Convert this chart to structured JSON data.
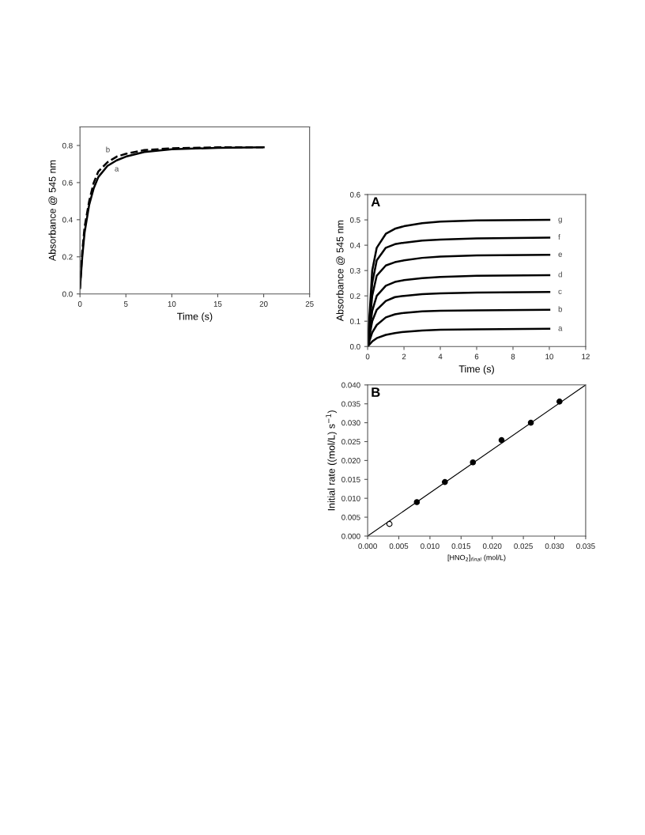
{
  "chart_data": [
    {
      "type": "line",
      "ylabel": "Absorbance @ 545 nm",
      "xlabel": "Time (s)",
      "xlim": [
        0,
        25
      ],
      "xticks": [
        0,
        5,
        10,
        15,
        20,
        25
      ],
      "ylim": [
        0,
        0.9
      ],
      "yticks": [
        {
          "value": 0,
          "label": "0.0"
        },
        {
          "value": 0.2,
          "label": "0.2"
        },
        {
          "value": 0.4,
          "label": "0.4"
        },
        {
          "value": 0.6,
          "label": "0.6"
        },
        {
          "value": 0.8,
          "label": "0.8"
        }
      ],
      "grid": false,
      "legend": false,
      "series": [
        {
          "name": "a",
          "color": "#000000",
          "line_style": "solid",
          "x": [
            0,
            0.25,
            0.5,
            1,
            1.5,
            2,
            3,
            4,
            5,
            7,
            10,
            15,
            20
          ],
          "values": [
            0.03,
            0.2,
            0.33,
            0.48,
            0.57,
            0.63,
            0.69,
            0.72,
            0.74,
            0.765,
            0.78,
            0.787,
            0.79
          ]
        },
        {
          "name": "b",
          "color": "#000000",
          "line_style": "dashed",
          "x": [
            0,
            0.25,
            0.5,
            1,
            1.5,
            2,
            3,
            4,
            5,
            7,
            10,
            15,
            20
          ],
          "values": [
            0.03,
            0.23,
            0.36,
            0.5,
            0.6,
            0.66,
            0.71,
            0.74,
            0.755,
            0.775,
            0.785,
            0.79,
            0.79
          ]
        }
      ]
    },
    {
      "type": "line",
      "title": "A",
      "ylabel": "Absorbance @ 545 nm",
      "xlabel": "Time (s)",
      "xlim": [
        0,
        12
      ],
      "xticks": [
        0,
        2,
        4,
        6,
        8,
        10,
        12
      ],
      "ylim": [
        0,
        0.6
      ],
      "yticks": [
        {
          "value": 0,
          "label": "0.0"
        },
        {
          "value": 0.1,
          "label": "0.1"
        },
        {
          "value": 0.2,
          "label": "0.2"
        },
        {
          "value": 0.3,
          "label": "0.3"
        },
        {
          "value": 0.4,
          "label": "0.4"
        },
        {
          "value": 0.5,
          "label": "0.5"
        },
        {
          "value": 0.6,
          "label": "0.6"
        }
      ],
      "grid": false,
      "legend": false,
      "line_style": "solid",
      "series": [
        {
          "name": "a",
          "color": "#000000",
          "x": [
            0,
            0.25,
            0.5,
            1,
            1.5,
            2,
            3,
            4,
            6,
            10
          ],
          "values": [
            0,
            0.02,
            0.033,
            0.046,
            0.053,
            0.058,
            0.063,
            0.066,
            0.068,
            0.07
          ]
        },
        {
          "name": "b",
          "color": "#000000",
          "x": [
            0,
            0.25,
            0.5,
            1,
            1.5,
            2,
            3,
            4,
            6,
            10
          ],
          "values": [
            0,
            0.055,
            0.085,
            0.115,
            0.127,
            0.133,
            0.139,
            0.141,
            0.143,
            0.145
          ]
        },
        {
          "name": "c",
          "color": "#000000",
          "x": [
            0,
            0.25,
            0.5,
            1,
            1.5,
            2,
            3,
            4,
            6,
            10
          ],
          "values": [
            0,
            0.1,
            0.145,
            0.18,
            0.195,
            0.2,
            0.207,
            0.21,
            0.213,
            0.215
          ]
        },
        {
          "name": "d",
          "color": "#000000",
          "x": [
            0,
            0.25,
            0.5,
            1,
            1.5,
            2,
            3,
            4,
            6,
            10
          ],
          "values": [
            0,
            0.14,
            0.2,
            0.24,
            0.255,
            0.262,
            0.27,
            0.275,
            0.279,
            0.282
          ]
        },
        {
          "name": "e",
          "color": "#000000",
          "x": [
            0,
            0.25,
            0.5,
            1,
            1.5,
            2,
            3,
            4,
            6,
            10
          ],
          "values": [
            0,
            0.2,
            0.28,
            0.32,
            0.333,
            0.34,
            0.35,
            0.355,
            0.36,
            0.362
          ]
        },
        {
          "name": "f",
          "color": "#000000",
          "x": [
            0,
            0.25,
            0.5,
            1,
            1.5,
            2,
            3,
            4,
            6,
            10
          ],
          "values": [
            0,
            0.25,
            0.34,
            0.39,
            0.404,
            0.41,
            0.418,
            0.422,
            0.427,
            0.43
          ]
        },
        {
          "name": "g",
          "color": "#000000",
          "x": [
            0,
            0.25,
            0.5,
            1,
            1.5,
            2,
            3,
            4,
            6,
            10
          ],
          "values": [
            0,
            0.3,
            0.39,
            0.445,
            0.465,
            0.475,
            0.487,
            0.493,
            0.498,
            0.5
          ]
        }
      ]
    },
    {
      "type": "scatter",
      "title": "B",
      "ylabel": "Initial rate ((mol/L) s$^{−1}$)",
      "xlabel": "[HNO$_{2}$]$_{final}$ (mol/L)",
      "xlim": [
        0,
        0.035
      ],
      "xticks": [
        {
          "value": 0,
          "label": "0.000"
        },
        {
          "value": 0.005,
          "label": "0.005"
        },
        {
          "value": 0.01,
          "label": "0.010"
        },
        {
          "value": 0.015,
          "label": "0.015"
        },
        {
          "value": 0.02,
          "label": "0.020"
        },
        {
          "value": 0.025,
          "label": "0.025"
        },
        {
          "value": 0.03,
          "label": "0.030"
        },
        {
          "value": 0.035,
          "label": "0.035"
        }
      ],
      "ylim": [
        0,
        0.04
      ],
      "yticks": [
        {
          "value": 0,
          "label": "0.000"
        },
        {
          "value": 0.005,
          "label": "0.005"
        },
        {
          "value": 0.01,
          "label": "0.010"
        },
        {
          "value": 0.015,
          "label": "0.015"
        },
        {
          "value": 0.02,
          "label": "0.020"
        },
        {
          "value": 0.025,
          "label": "0.025"
        },
        {
          "value": 0.03,
          "label": "0.030"
        },
        {
          "value": 0.035,
          "label": "0.035"
        },
        {
          "value": 0.04,
          "label": "0.040"
        }
      ],
      "grid": false,
      "legend": false,
      "series": [
        {
          "color": "#000000",
          "marker": "circle",
          "x": [
            0.0079,
            0.0124,
            0.0169,
            0.0215,
            0.0262,
            0.0308
          ],
          "values": [
            0.009,
            0.0143,
            0.0195,
            0.0254,
            0.03,
            0.0356
          ]
        },
        {
          "color": "#ffffff",
          "marker": "circle",
          "x": [
            0.0035
          ],
          "values": [
            0.0032
          ]
        },
        {
          "type": "line",
          "color": "#000000",
          "x": [
            0,
            0.035
          ],
          "values": [
            0,
            0.04
          ]
        }
      ]
    }
  ]
}
